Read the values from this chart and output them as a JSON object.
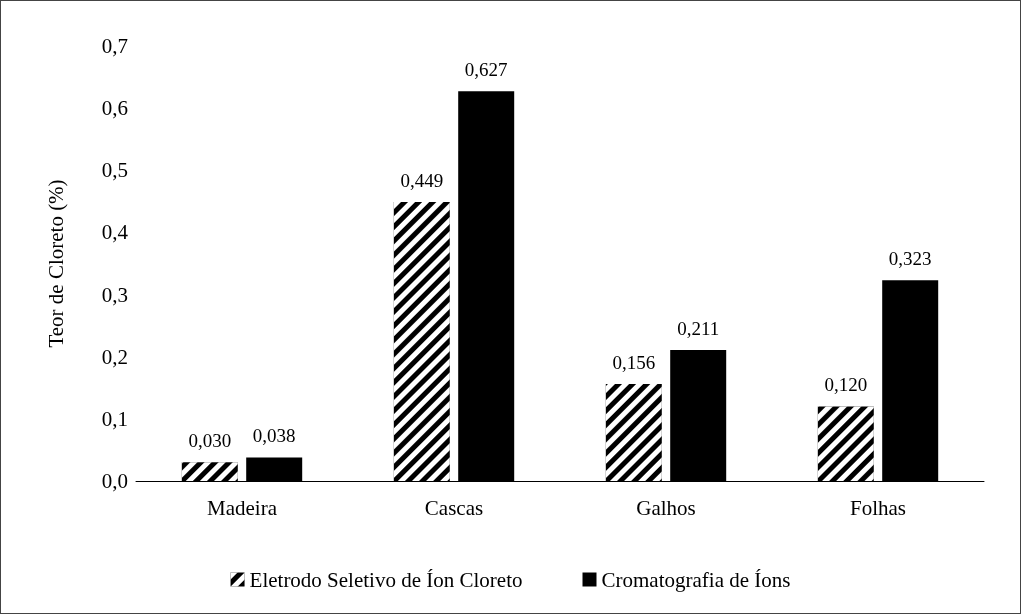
{
  "chart_data": {
    "type": "bar",
    "ylabel": "Teor de Cloreto (%)",
    "categories": [
      "Madeira",
      "Cascas",
      "Galhos",
      "Folhas"
    ],
    "series": [
      {
        "name": "Eletrodo Seletivo de Íon Cloreto",
        "color": "#000000",
        "values": [
          0.03,
          0.449,
          0.156,
          0.12
        ],
        "value_labels": [
          "0,030",
          "0,449",
          "0,156",
          "0,120"
        ]
      },
      {
        "name": "Cromatografia de Íons",
        "color": "#000000",
        "values": [
          0.038,
          0.627,
          0.211,
          0.323
        ],
        "value_labels": [
          "0,038",
          "0,627",
          "0,211",
          "0,323"
        ]
      }
    ],
    "ylim": [
      0,
      0.7
    ],
    "yticks": [
      {
        "value": 0,
        "label": "0,0"
      },
      {
        "value": 0.1,
        "label": "0,1"
      },
      {
        "value": 0.2,
        "label": "0,2"
      },
      {
        "value": 0.3,
        "label": "0,3"
      },
      {
        "value": 0.4,
        "label": "0,4"
      },
      {
        "value": 0.5,
        "label": "0,5"
      },
      {
        "value": 0.6,
        "label": "0,6"
      },
      {
        "value": 0.7,
        "label": "0,7"
      }
    ],
    "grid": false,
    "legend": "bottom"
  }
}
